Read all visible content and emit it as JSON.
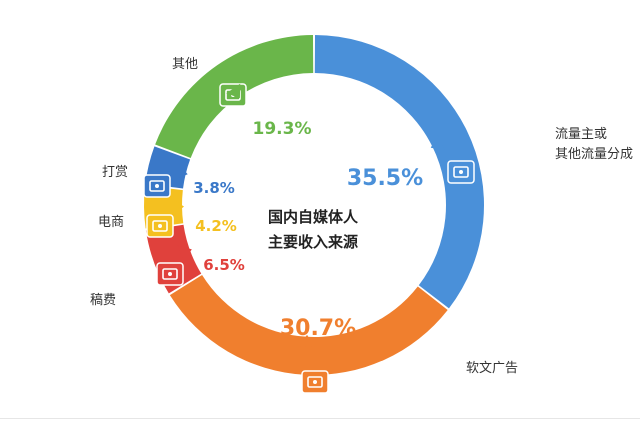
{
  "chart_data": {
    "type": "pie",
    "style": "donut",
    "title_lines": [
      "国内自媒体人",
      "主要收入来源"
    ],
    "slices": [
      {
        "label": "流量主或\n其他流量分成",
        "value": 35.5,
        "value_text": "35.5%",
        "color": "#4a90d9",
        "icon": "network-share-icon"
      },
      {
        "label": "软文广告",
        "value": 30.7,
        "value_text": "30.7%",
        "color": "#f07f2e",
        "icon": "speaker-screen-icon"
      },
      {
        "label": "稿费",
        "value": 6.5,
        "value_text": "6.5%",
        "color": "#e0413c",
        "icon": "hand-coin-icon"
      },
      {
        "label": "电商",
        "value": 4.2,
        "value_text": "4.2%",
        "color": "#f4c020",
        "icon": "shop-screen-icon"
      },
      {
        "label": "打赏",
        "value": 3.8,
        "value_text": "3.8%",
        "color": "#3a78c8",
        "icon": "coin-stack-icon"
      },
      {
        "label": "其他",
        "value": 19.3,
        "value_text": "19.3%",
        "color": "#6ab64a",
        "icon": "wallet-icon"
      }
    ],
    "legend": "none"
  }
}
